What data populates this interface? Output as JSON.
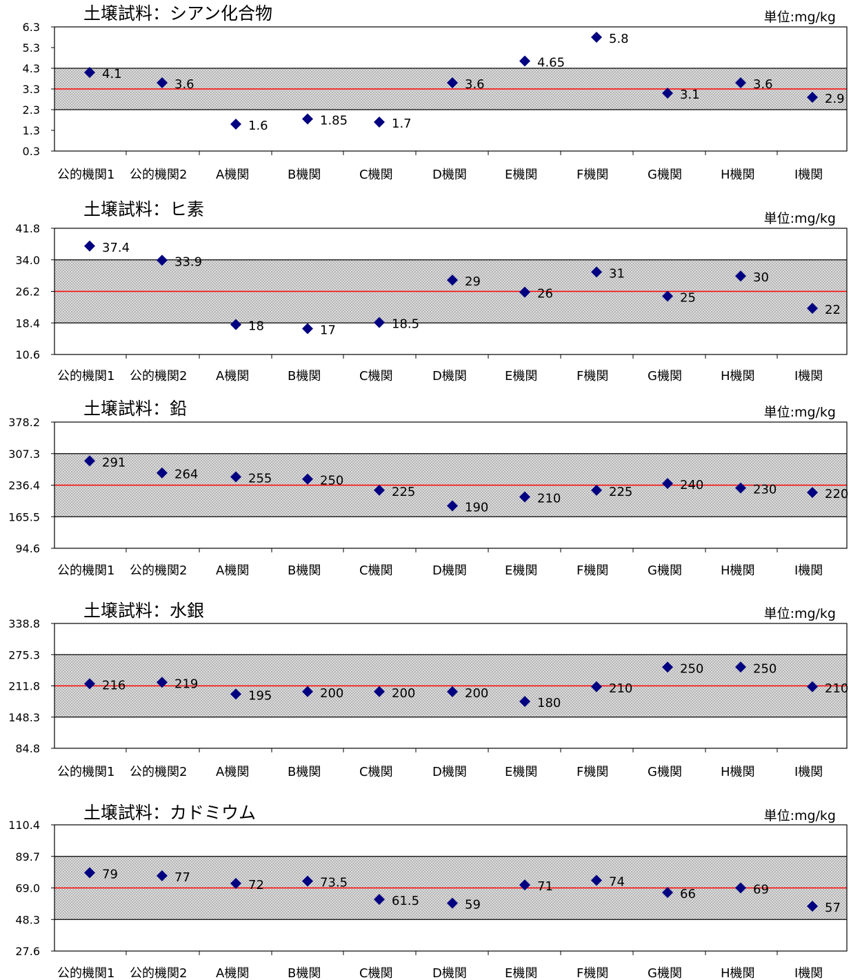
{
  "categories": [
    "公的機関1",
    "公的機関2",
    "A機関",
    "B機関",
    "C機関",
    "D機関",
    "E機関",
    "F機関",
    "G機関",
    "H機関",
    "I機関"
  ],
  "unit_label": "単位:mg/kg",
  "colors": {
    "marker": "#000080",
    "center_line": "#ff0000",
    "band_fill": "#d9d9d9",
    "axis": "#000000"
  },
  "chart_data": [
    {
      "type": "scatter",
      "title": "土壌試料：シアン化合物",
      "unit": "単位:mg/kg",
      "ylim": [
        0.3,
        6.3
      ],
      "yticks": [
        "6.3",
        "5.3",
        "4.3",
        "3.3",
        "2.3",
        "1.3",
        "0.3"
      ],
      "ytick_values": [
        6.3,
        5.3,
        4.3,
        3.3,
        2.3,
        1.3,
        0.3
      ],
      "center": 3.3,
      "band": [
        2.3,
        4.3
      ],
      "values": [
        4.1,
        3.6,
        1.6,
        1.85,
        1.7,
        3.6,
        4.65,
        5.8,
        3.1,
        3.6,
        2.9
      ],
      "labels": [
        "4.1",
        "3.6",
        "1.6",
        "1.85",
        "1.7",
        "3.6",
        "4.65",
        "5.8",
        "3.1",
        "3.6",
        "2.9"
      ]
    },
    {
      "type": "scatter",
      "title": "土壌試料：ヒ素",
      "unit": "単位:mg/kg",
      "ylim": [
        10.6,
        41.8
      ],
      "yticks": [
        "41.8",
        "34.0",
        "26.2",
        "18.4",
        "10.6"
      ],
      "ytick_values": [
        41.8,
        34.0,
        26.2,
        18.4,
        10.6
      ],
      "center": 26.2,
      "band": [
        18.4,
        34.0
      ],
      "values": [
        37.4,
        33.9,
        18,
        17,
        18.5,
        29,
        26,
        31,
        25,
        30,
        22
      ],
      "labels": [
        "37.4",
        "33.9",
        "18",
        "17",
        "18.5",
        "29",
        "26",
        "31",
        "25",
        "30",
        "22"
      ]
    },
    {
      "type": "scatter",
      "title": "土壌試料：鉛",
      "unit": "単位:mg/kg",
      "ylim": [
        94.6,
        378.2
      ],
      "yticks": [
        "378.2",
        "307.3",
        "236.4",
        "165.5",
        "94.6"
      ],
      "ytick_values": [
        378.2,
        307.3,
        236.4,
        165.5,
        94.6
      ],
      "center": 236.4,
      "band": [
        165.5,
        307.3
      ],
      "values": [
        291,
        264,
        255,
        250,
        225,
        190,
        210,
        225,
        240,
        230,
        220
      ],
      "labels": [
        "291",
        "264",
        "255",
        "250",
        "225",
        "190",
        "210",
        "225",
        "240",
        "230",
        "220"
      ]
    },
    {
      "type": "scatter",
      "title": "土壌試料：水銀",
      "unit": "単位:mg/kg",
      "ylim": [
        84.8,
        338.8
      ],
      "yticks": [
        "338.8",
        "275.3",
        "211.8",
        "148.3",
        "84.8"
      ],
      "ytick_values": [
        338.8,
        275.3,
        211.8,
        148.3,
        84.8
      ],
      "center": 211.8,
      "band": [
        148.3,
        275.3
      ],
      "values": [
        216,
        219,
        195,
        200,
        200,
        200,
        180,
        210,
        250,
        250,
        210
      ],
      "labels": [
        "216",
        "219",
        "195",
        "200",
        "200",
        "200",
        "180",
        "210",
        "250",
        "250",
        "210"
      ]
    },
    {
      "type": "scatter",
      "title": "土壌試料：カドミウム",
      "unit": "単位:mg/kg",
      "ylim": [
        27.6,
        110.4
      ],
      "yticks": [
        "110.4",
        "89.7",
        "69.0",
        "48.3",
        "27.6"
      ],
      "ytick_values": [
        110.4,
        89.7,
        69.0,
        48.3,
        27.6
      ],
      "center": 69.0,
      "band": [
        48.3,
        89.7
      ],
      "values": [
        79,
        77,
        72,
        73.5,
        61.5,
        59,
        71,
        74,
        66,
        69,
        57
      ],
      "labels": [
        "79",
        "77",
        "72",
        "73.5",
        "61.5",
        "59",
        "71",
        "74",
        "66",
        "69",
        "57"
      ]
    }
  ]
}
